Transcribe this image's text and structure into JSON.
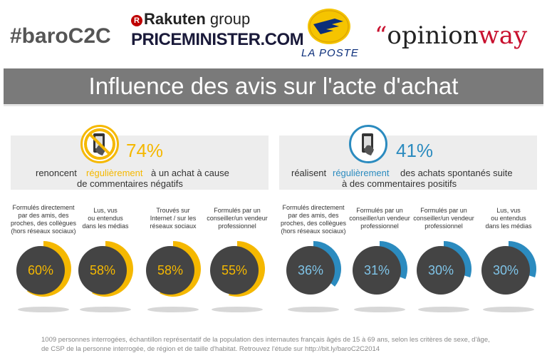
{
  "header": {
    "hashtag": "#baroC2C",
    "rakuten": "Rakuten",
    "rakuten_group": "group",
    "priceminister": "PRICEMINISTER.COM",
    "laposte": "LA POSTE",
    "opinionway_prefix": "opinion",
    "opinionway_suffix": "way"
  },
  "title": "Influence des avis sur l'acte d'achat",
  "colors": {
    "negative": "#f5b800",
    "positive": "#2b8bbf",
    "donut_center": "#444444",
    "donut_track": "#dcdcdc"
  },
  "left": {
    "big_pct": "74%",
    "text_before": "renoncent",
    "highlight": "régulièrement",
    "text_after": "à un achat à cause",
    "text_line2": "de commentaires négatifs",
    "icon": "no-smartphone-icon"
  },
  "right": {
    "big_pct": "41%",
    "text_before": "réalisent",
    "highlight": "régulièrement",
    "text_after": "des achats spontanés suite",
    "text_line2": "à des commentaires positifs",
    "icon": "smartphone-icon"
  },
  "chart_data": [
    {
      "type": "pie",
      "categories": [
        "Formulés directement par des amis, des proches, des collègues (hors réseaux sociaux)",
        "Lus, vus ou entendus dans les médias",
        "Trouvés sur Internet / sur les réseaux sociaux",
        "Formulés par un conseiller/un vendeur professionnel"
      ],
      "values": [
        60,
        58,
        58,
        55
      ],
      "labels": [
        "60%",
        "58%",
        "58%",
        "55%"
      ],
      "unit": "%"
    },
    {
      "type": "pie",
      "categories": [
        "Formulés directement par des amis, des proches, des collègues (hors réseaux sociaux)",
        "Formulés par un conseiller/un vendeur professionnel",
        "Formulés par un conseiller/un vendeur professionnel",
        "Lus, vus ou entendus dans les médias"
      ],
      "values": [
        36,
        31,
        30,
        30
      ],
      "labels": [
        "36%",
        "31%",
        "30%",
        "30%"
      ],
      "unit": "%"
    }
  ],
  "left_labels": [
    [
      "Formulés directement",
      "par des amis, des",
      "proches, des collègues",
      "(hors réseaux sociaux)"
    ],
    [
      "Lus, vus",
      "ou entendus",
      "dans les médias"
    ],
    [
      "Trouvés sur",
      "Internet / sur les",
      "réseaux sociaux"
    ],
    [
      "Formulés par un",
      "conseiller/un vendeur",
      "professionnel"
    ]
  ],
  "right_labels": [
    [
      "Formulés directement",
      "par des amis, des",
      "proches, des collègues",
      "(hors réseaux sociaux)"
    ],
    [
      "Formulés par un",
      "conseiller/un vendeur",
      "professionnel"
    ],
    [
      "Formulés par un",
      "conseiller/un vendeur",
      "professionnel"
    ],
    [
      "Lus, vus",
      "ou entendus",
      "dans les médias"
    ]
  ],
  "footnote": {
    "line1": "1009 personnes interrogées, échantillon représentatif de la population des internautes français âgés de 15 à 69 ans, selon les critères de sexe, d'âge,",
    "line2": "de CSP de la personne interrogée, de région et de taille d'habitat. Retrouvez l'étude sur http://bit.ly/baroC2C2014"
  }
}
